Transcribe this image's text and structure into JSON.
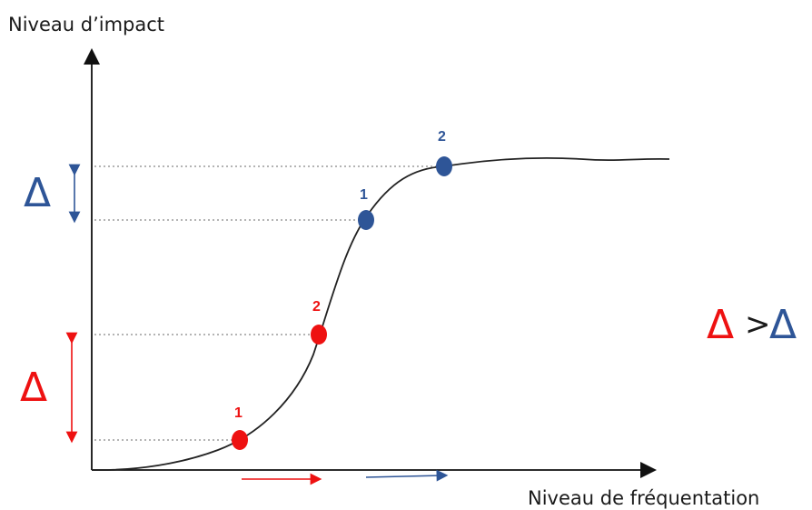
{
  "diagram": {
    "y_axis_label": "Niveau d’impact",
    "x_axis_label": "Niveau de fréquentation",
    "delta_symbol": "Δ",
    "gt_symbol": ">",
    "points": [
      {
        "label": "1",
        "series": "blue"
      },
      {
        "label": "2",
        "series": "blue"
      },
      {
        "label": "1",
        "series": "red"
      },
      {
        "label": "2",
        "series": "red"
      }
    ]
  },
  "colors": {
    "red": "#ee1111",
    "blue": "#2e5597",
    "curve": "#222222",
    "guide": "#888888",
    "axis": "#111111"
  }
}
